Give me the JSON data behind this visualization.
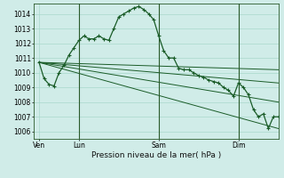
{
  "background_color": "#d0ece8",
  "grid_color": "#a8d8cc",
  "line_color": "#1a5c28",
  "title": "Pression niveau de la mer( hPa )",
  "x_ticks_labels": [
    "Ven",
    "Lun",
    "Sam",
    "Dim"
  ],
  "x_ticks_pos": [
    0,
    8,
    24,
    40
  ],
  "xlim": [
    -1,
    48
  ],
  "ylim": [
    1005.5,
    1014.7
  ],
  "yticks": [
    1006,
    1007,
    1008,
    1009,
    1010,
    1011,
    1012,
    1013,
    1014
  ],
  "series_marked": {
    "x": [
      0,
      1,
      2,
      3,
      4,
      5,
      6,
      7,
      8,
      9,
      10,
      11,
      12,
      13,
      14,
      15,
      16,
      17,
      18,
      19,
      20,
      21,
      22,
      23,
      24,
      25,
      26,
      27,
      28,
      29,
      30,
      31,
      32,
      33,
      34,
      35,
      36,
      37,
      38,
      39,
      40,
      41,
      42,
      43,
      44,
      45,
      46,
      47,
      48
    ],
    "y": [
      1010.7,
      1009.6,
      1009.2,
      1009.1,
      1010.0,
      1010.5,
      1011.2,
      1011.7,
      1012.2,
      1012.5,
      1012.3,
      1012.3,
      1012.5,
      1012.3,
      1012.2,
      1013.0,
      1013.8,
      1014.0,
      1014.2,
      1014.4,
      1014.5,
      1014.3,
      1014.0,
      1013.6,
      1012.5,
      1011.5,
      1011.0,
      1011.0,
      1010.3,
      1010.2,
      1010.2,
      1010.0,
      1009.8,
      1009.7,
      1009.5,
      1009.4,
      1009.3,
      1009.0,
      1008.8,
      1008.4,
      1009.3,
      1009.0,
      1008.5,
      1007.5,
      1007.0,
      1007.2,
      1006.2,
      1007.0,
      1007.0
    ]
  },
  "series_lines": [
    {
      "x": [
        0,
        48
      ],
      "y": [
        1010.7,
        1010.2
      ]
    },
    {
      "x": [
        0,
        48
      ],
      "y": [
        1010.7,
        1009.3
      ]
    },
    {
      "x": [
        0,
        48
      ],
      "y": [
        1010.7,
        1008.0
      ]
    },
    {
      "x": [
        0,
        48
      ],
      "y": [
        1010.7,
        1006.2
      ]
    }
  ],
  "vlines_x": [
    8,
    24,
    40
  ]
}
